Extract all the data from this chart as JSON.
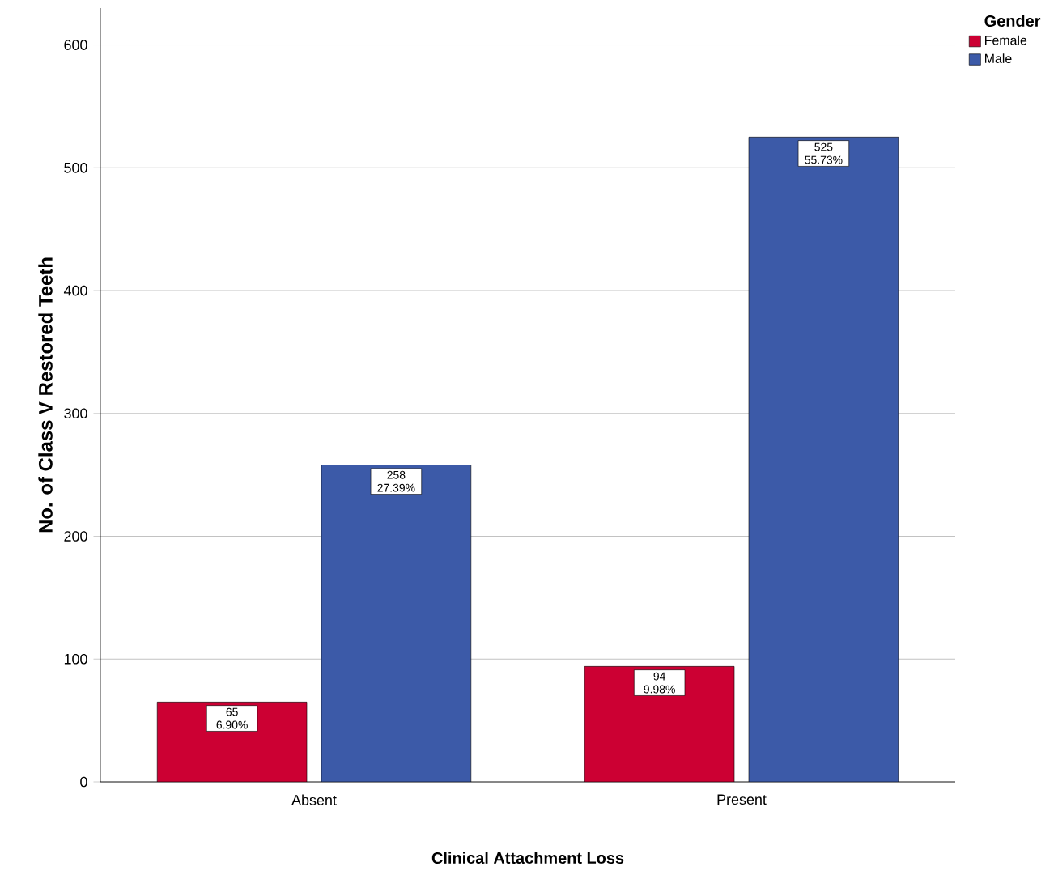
{
  "chart_data": {
    "type": "bar",
    "xlabel": "Clinical Attachment Loss",
    "ylabel": "No. of Class V Restored Teeth",
    "legend_title": "Gender",
    "categories": [
      "Absent",
      "Present"
    ],
    "series": [
      {
        "name": "Female",
        "color": "#cc0033",
        "values": [
          65,
          94
        ],
        "value_labels": [
          "65 6.90%",
          "94 9.98%"
        ]
      },
      {
        "name": "Male",
        "color": "#3c5aa8",
        "values": [
          258,
          525
        ],
        "value_labels": [
          "258 27.39%",
          "525 55.73%"
        ]
      }
    ],
    "ylim": [
      0,
      630
    ],
    "yticks": [
      0,
      100,
      200,
      300,
      400,
      500,
      600
    ],
    "grid": "y",
    "legend": "right"
  }
}
